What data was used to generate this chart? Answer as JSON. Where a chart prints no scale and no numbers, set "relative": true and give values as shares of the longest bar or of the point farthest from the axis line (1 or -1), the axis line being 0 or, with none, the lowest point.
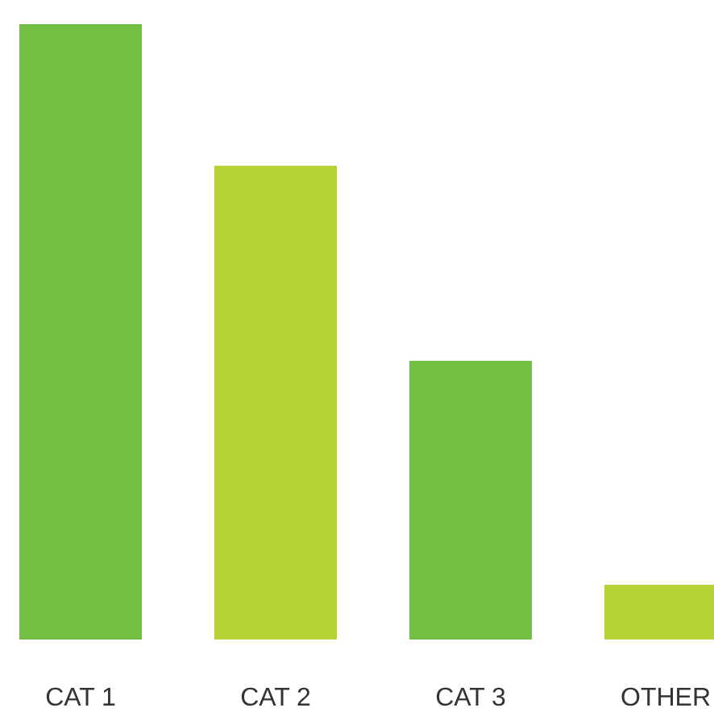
{
  "chart_data": {
    "type": "bar",
    "categories": [
      "CAT 1",
      "CAT 2",
      "CAT 3",
      "OTHER"
    ],
    "values": [
      1,
      0.77,
      0.453,
      0.089
    ],
    "colors": [
      "#72bf44",
      "#b5d334",
      "#72bf44",
      "#b5d334"
    ],
    "relative": true
  }
}
